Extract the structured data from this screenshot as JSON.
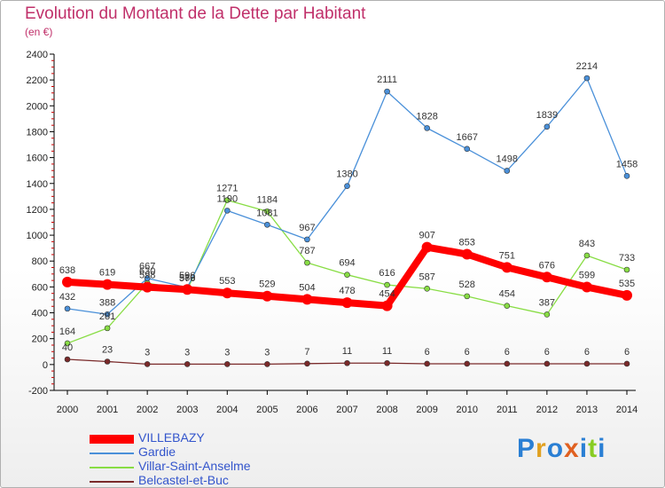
{
  "title": "Evolution du Montant de la Dette par Habitant",
  "subtitle": "(en €)",
  "logo_text": "Proxiti",
  "chart_data": {
    "type": "line",
    "title": "Evolution du Montant de la Dette par Habitant",
    "ylabel": "(en €)",
    "x": [
      2000,
      2001,
      2002,
      2003,
      2004,
      2005,
      2006,
      2007,
      2008,
      2009,
      2010,
      2011,
      2012,
      2013,
      2014
    ],
    "ylim": [
      -200,
      2400
    ],
    "yticks": [
      -200,
      0,
      200,
      400,
      600,
      800,
      1000,
      1200,
      1400,
      1600,
      1800,
      2000,
      2200,
      2400
    ],
    "grid": false,
    "legend_position": "bottom-left",
    "series": [
      {
        "name": "VILLEBAZY",
        "color": "#ff0000",
        "values": [
          638,
          619,
          598,
          580,
          553,
          529,
          504,
          478,
          454,
          907,
          853,
          751,
          676,
          599,
          535
        ]
      },
      {
        "name": "Gardie",
        "color": "#4a90d9",
        "values": [
          432,
          388,
          667,
          596,
          1190,
          1081,
          967,
          1380,
          2111,
          1828,
          1667,
          1498,
          1839,
          2214,
          1458
        ]
      },
      {
        "name": "Villar-Saint-Anselme",
        "color": "#88dd44",
        "values": [
          164,
          281,
          630,
          576,
          1271,
          1184,
          787,
          694,
          616,
          587,
          528,
          454,
          387,
          843,
          733
        ]
      },
      {
        "name": "Belcastel-et-Buc",
        "color": "#7a2a2a",
        "values": [
          40,
          23,
          3,
          3,
          3,
          3,
          7,
          11,
          11,
          6,
          6,
          6,
          6,
          6,
          6
        ]
      }
    ]
  }
}
